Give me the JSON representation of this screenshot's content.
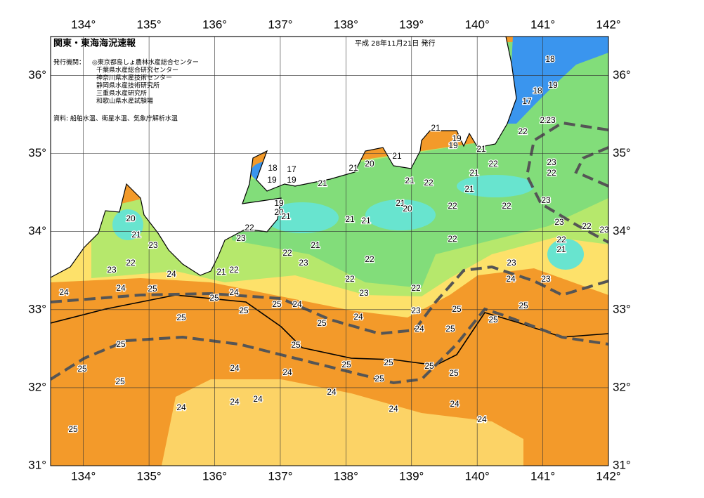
{
  "header": {
    "title": "関東・東海海況速報",
    "date": "平成 28年11月21日 発行"
  },
  "issuers": {
    "label": "発行機関：",
    "list": [
      "◎東京都島しょ農林水産総合センター",
      "千葉県水産総合研究センター",
      "神奈川県水産技術センター",
      "静岡県水産技術研究所",
      "三重県水産研究所",
      "和歌山県水産試験場"
    ]
  },
  "source": "資料: 船舶水温、衛星水温、気象庁解析水温",
  "map": {
    "xlim": [
      133.5,
      142
    ],
    "ylim": [
      31,
      36.5
    ],
    "xticks": [
      {
        "value": 134,
        "label": "134°"
      },
      {
        "value": 135,
        "label": "135°"
      },
      {
        "value": 136,
        "label": "136°"
      },
      {
        "value": 137,
        "label": "137°"
      },
      {
        "value": 138,
        "label": "138°"
      },
      {
        "value": 139,
        "label": "139°"
      },
      {
        "value": 140,
        "label": "140°"
      },
      {
        "value": 141,
        "label": "141°"
      },
      {
        "value": 142,
        "label": "142°"
      }
    ],
    "yticks": [
      {
        "value": 31,
        "label": "31°"
      },
      {
        "value": 32,
        "label": "32°"
      },
      {
        "value": 33,
        "label": "33°"
      },
      {
        "value": 34,
        "label": "34°"
      },
      {
        "value": 35,
        "label": "35°"
      },
      {
        "value": 36,
        "label": "36°"
      }
    ],
    "contour_labels": [
      18,
      19,
      18,
      17,
      21,
      22,
      23,
      21,
      19,
      19,
      21,
      21,
      20,
      21,
      18,
      17,
      19,
      19,
      21,
      22,
      23,
      22,
      21,
      22,
      21,
      21,
      19,
      20,
      21,
      21,
      20,
      22,
      22,
      23,
      20,
      21,
      22,
      21,
      21,
      23,
      22,
      23,
      23,
      22,
      22,
      21,
      23,
      22,
      21,
      22,
      23,
      22,
      23,
      21,
      22,
      24,
      23,
      22,
      24,
      23,
      24,
      24,
      25,
      24,
      25,
      22,
      23,
      25,
      24,
      25,
      25,
      25,
      23,
      25,
      24,
      25,
      25,
      25,
      24,
      25,
      25,
      25,
      25,
      25,
      25,
      24,
      24,
      25,
      25,
      25,
      24,
      24,
      24,
      24,
      24,
      24,
      24,
      25,
      24
    ]
  }
}
